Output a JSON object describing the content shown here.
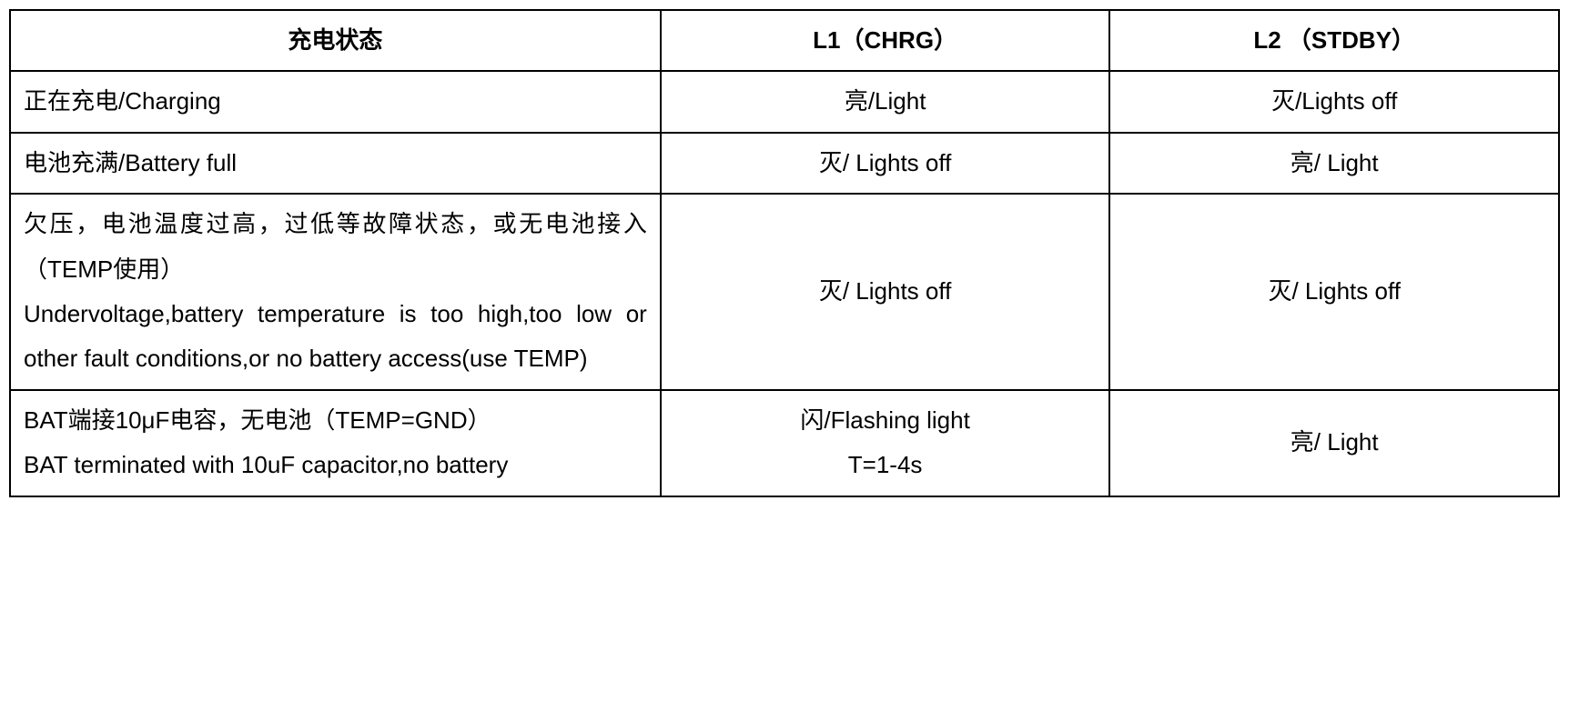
{
  "table": {
    "border_color": "#000000",
    "background_color": "#ffffff",
    "text_color": "#000000",
    "font_size_pt": 20,
    "column_widths_pct": [
      42,
      29,
      29
    ],
    "headers": {
      "state": "充电状态",
      "l1": "L1（CHRG）",
      "l2": "L2 （STDBY）"
    },
    "rows": [
      {
        "state": "正在充电/Charging",
        "l1": "亮/Light",
        "l2": "灭/Lights off",
        "justify": false
      },
      {
        "state": "电池充满/Battery full",
        "l1": "灭/ Lights off",
        "l2": "亮/ Light",
        "justify": false
      },
      {
        "state": "欠压，电池温度过高，过低等故障状态，或无电池接入（TEMP使用）\nUndervoltage,battery temperature is too high,too low or other fault conditions,or no battery access(use TEMP)",
        "l1": "灭/ Lights off",
        "l2": "灭/ Lights off",
        "justify": true
      },
      {
        "state": "BAT端接10μF电容，无电池（TEMP=GND）\nBAT terminated with 10uF capacitor,no battery",
        "l1": "闪/Flashing light\nT=1-4s",
        "l2": "亮/ Light",
        "justify": true
      }
    ]
  }
}
